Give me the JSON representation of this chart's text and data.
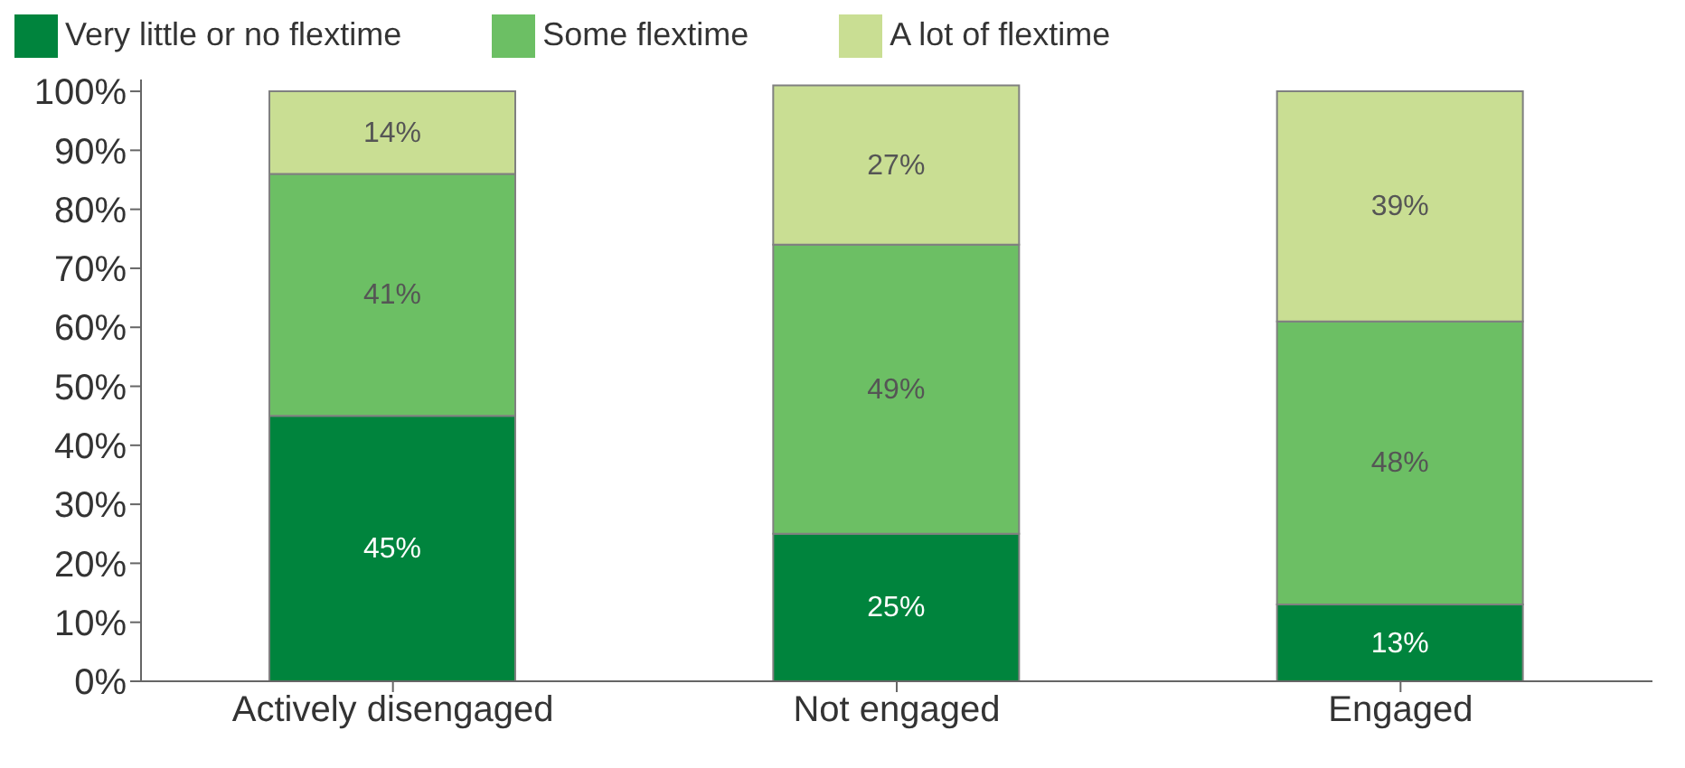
{
  "chart_data": {
    "type": "bar",
    "stacked": true,
    "categories": [
      "Actively disengaged",
      "Not engaged",
      "Engaged"
    ],
    "series": [
      {
        "name": "Very little or no flextime",
        "color": "#00843d",
        "values": [
          45,
          25,
          13
        ]
      },
      {
        "name": "Some flextime",
        "color": "#6cbf64",
        "values": [
          41,
          49,
          48
        ]
      },
      {
        "name": "A lot of flextime",
        "color": "#c9de93",
        "values": [
          14,
          27,
          39
        ]
      }
    ],
    "ylim": [
      0,
      102
    ],
    "yticks": [
      {
        "value": 0,
        "label": "0%"
      },
      {
        "value": 10,
        "label": "10%"
      },
      {
        "value": 20,
        "label": "20%"
      },
      {
        "value": 30,
        "label": "30%"
      },
      {
        "value": 40,
        "label": "40%"
      },
      {
        "value": 50,
        "label": "50%"
      },
      {
        "value": 60,
        "label": "60%"
      },
      {
        "value": 70,
        "label": "70%"
      },
      {
        "value": 80,
        "label": "80%"
      },
      {
        "value": 90,
        "label": "90%"
      },
      {
        "value": 100,
        "label": "100%"
      }
    ],
    "value_labels": [
      [
        "45%",
        "25%",
        "13%"
      ],
      [
        "41%",
        "49%",
        "48%"
      ],
      [
        "14%",
        "27%",
        "39%"
      ]
    ],
    "legend": "top left",
    "grid": false
  }
}
